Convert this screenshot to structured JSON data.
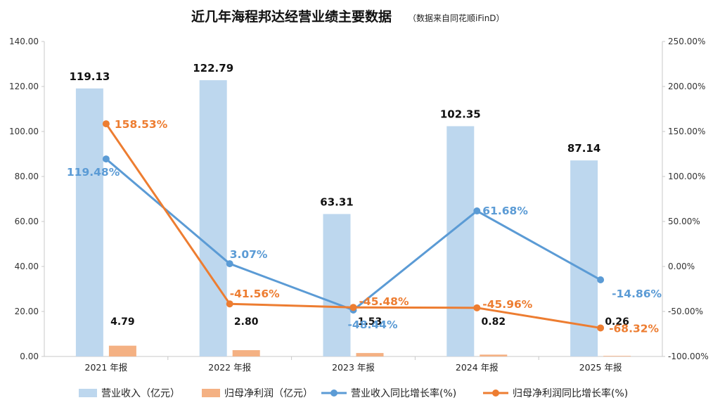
{
  "title": "近几年海程邦达经营业绩主要数据",
  "subtitle": "（数据来自同花顺iFinD）",
  "colors": {
    "revenue_bar": "#bdd7ee",
    "profit_bar": "#f4b183",
    "revenue_growth_line": "#5b9bd5",
    "profit_growth_line": "#ed7d31"
  },
  "chart_data": {
    "type": "bar",
    "categories": [
      "2021 年报",
      "2022 年报",
      "2023 年报",
      "2024 年报",
      "2025 年报"
    ],
    "series": [
      {
        "name": "营业收入（亿元）",
        "kind": "bar",
        "axis": "left",
        "values": [
          119.13,
          122.79,
          63.31,
          102.35,
          87.14
        ],
        "labels": [
          "119.13",
          "122.79",
          "63.31",
          "102.35",
          "87.14"
        ]
      },
      {
        "name": "归母净利润（亿元）",
        "kind": "bar",
        "axis": "left",
        "values": [
          4.79,
          2.8,
          1.53,
          0.82,
          0.26
        ],
        "labels": [
          "4.79",
          "2.80",
          "1.53",
          "0.82",
          "0.26"
        ]
      },
      {
        "name": "营业收入同比增长率(%)",
        "kind": "line",
        "axis": "right",
        "values": [
          119.48,
          3.07,
          -48.44,
          61.68,
          -14.86
        ],
        "labels": [
          "119.48%",
          "3.07%",
          "-48.44%",
          "61.68%",
          "-14.86%"
        ]
      },
      {
        "name": "归母净利润同比增长率(%)",
        "kind": "line",
        "axis": "right",
        "values": [
          158.53,
          -41.56,
          -45.48,
          -45.96,
          -68.32
        ],
        "labels": [
          "158.53%",
          "-41.56%",
          "-45.48%",
          "-45.96%",
          "-68.32%"
        ]
      }
    ],
    "y_left": {
      "range": [
        0,
        140
      ],
      "ticks": [
        "0.00",
        "20.00",
        "40.00",
        "60.00",
        "80.00",
        "100.00",
        "120.00",
        "140.00"
      ]
    },
    "y_right": {
      "range": [
        -100,
        250
      ],
      "ticks": [
        "-100.00%",
        "-50.00%",
        "0.00%",
        "50.00%",
        "100.00%",
        "150.00%",
        "200.00%",
        "250.00%"
      ]
    },
    "grid": false,
    "legend_position": "bottom"
  }
}
